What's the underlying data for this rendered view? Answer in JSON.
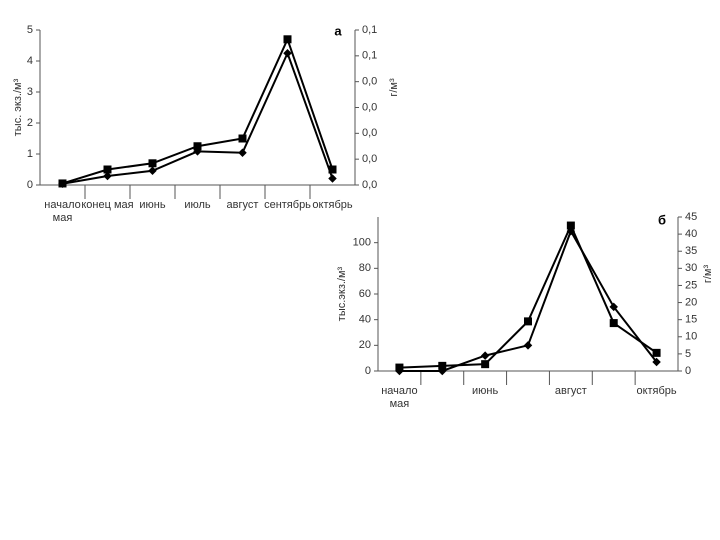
{
  "chart_data": [
    {
      "type": "line",
      "panel": "а",
      "ylabel": "тыс. экз./м³",
      "y2label": "г/м³",
      "categories": [
        "начало мая",
        "конец мая",
        "июнь",
        "июль",
        "август",
        "сентябрь",
        "октябрь"
      ],
      "series": [
        {
          "color": "#000000",
          "marker": "square",
          "values": [
            0.05,
            0.5,
            0.7,
            1.25,
            1.5,
            4.7,
            0.5
          ]
        },
        {
          "color": "#000000",
          "marker": "diamond",
          "axis": "y2",
          "values": [
            0.001,
            0.007,
            0.011,
            0.026,
            0.025,
            0.102,
            0.005
          ]
        }
      ],
      "ylim": [
        0,
        5
      ],
      "yticks": [
        0,
        1,
        2,
        3,
        4,
        5
      ],
      "y2lim": [
        0,
        0.12
      ],
      "y2ticks": [
        {
          "value": 0,
          "label": "0,0"
        },
        {
          "value": 0.02,
          "label": "0,0"
        },
        {
          "value": 0.04,
          "label": "0,0"
        },
        {
          "value": 0.06,
          "label": "0,0"
        },
        {
          "value": 0.08,
          "label": "0,0"
        },
        {
          "value": 0.1,
          "label": "0,1"
        },
        {
          "value": 0.12,
          "label": "0,1"
        }
      ]
    },
    {
      "type": "line",
      "panel": "б",
      "ylabel": "тыс.экз./м³",
      "y2label": "г/м³",
      "categories": [
        "начало мая",
        null,
        "июнь",
        null,
        "август",
        null,
        "октябрь"
      ],
      "series": [
        {
          "color": "#000000",
          "marker": "square",
          "axis": "y2",
          "values": [
            1,
            1.5,
            2,
            14.5,
            42.5,
            14,
            5.3
          ]
        },
        {
          "color": "#000000",
          "marker": "diamond",
          "values": [
            0,
            0,
            12,
            20,
            109,
            50,
            7
          ]
        }
      ],
      "ylim": [
        0,
        120
      ],
      "yticks": [
        0,
        20,
        40,
        60,
        80,
        100
      ],
      "y2lim": [
        0,
        45
      ],
      "y2ticks": [
        0,
        5,
        10,
        15,
        20,
        25,
        30,
        35,
        40,
        45
      ]
    }
  ]
}
